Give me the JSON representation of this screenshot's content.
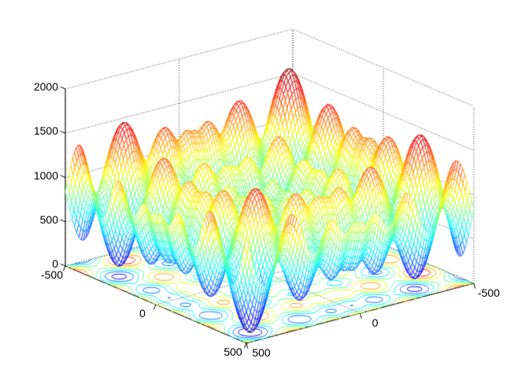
{
  "figure": {
    "background": "#ffffff",
    "title": ""
  },
  "chart_data": {
    "type": "surface",
    "render_style": "mesh-with-contour (MATLAB meshc style, white faces, colored wireframe)",
    "title": "",
    "xlabel": "",
    "ylabel": "",
    "zlabel": "",
    "function": "z(x,y) = 837.9658 - x*sin(sqrt(|x|)) - y*sin(sqrt(|y|))  (inverted 2-D Schwefel function)",
    "function_params": {
      "offset": 837.9658
    },
    "x_range": [
      -500,
      500
    ],
    "y_range": [
      -500,
      500
    ],
    "z_range": [
      0,
      2000
    ],
    "x_ticks": [
      -500,
      0,
      500
    ],
    "y_ticks": [
      500,
      0,
      -500
    ],
    "z_ticks": [
      0,
      500,
      1000,
      1500,
      2000
    ],
    "grid_step": 10,
    "view": {
      "azimuth": -37.5,
      "elevation": 30
    },
    "colormap": "jet",
    "colormap_low": "#00008f",
    "colormap_high": "#7f0000",
    "color_axis": [
      0,
      1675.93
    ],
    "contour_levels": [
      200,
      400,
      600,
      800,
      1000,
      1200,
      1400,
      1600
    ],
    "grid": true,
    "grid_style": "dotted",
    "grid_color": "#333333",
    "axis_color": "#000000",
    "mesh_face_color": "#ffffff",
    "background": "#ffffff"
  }
}
